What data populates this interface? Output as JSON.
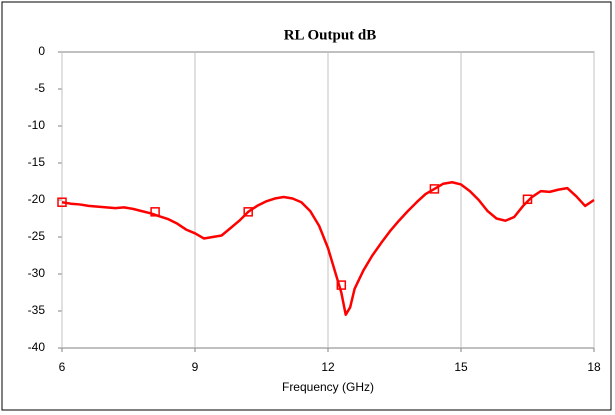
{
  "chart_data": {
    "type": "line",
    "title": "RL Output dB",
    "x_label": "Frequency (GHz)",
    "xlim": [
      6,
      18
    ],
    "xticks": [
      6,
      9,
      12,
      15,
      18
    ],
    "ylim": [
      -40,
      0
    ],
    "yticks": [
      0,
      -5,
      -10,
      -15,
      -20,
      -25,
      -30,
      -35,
      -40
    ],
    "xgrid": true,
    "ygrid": false,
    "series": [
      {
        "color": "#ff0000",
        "marker": false,
        "x": [
          6.0,
          6.2,
          6.4,
          6.6,
          6.8,
          7.0,
          7.2,
          7.4,
          7.6,
          7.8,
          8.0,
          8.2,
          8.4,
          8.6,
          8.8,
          9.0,
          9.2,
          9.4,
          9.6,
          9.8,
          10.0,
          10.2,
          10.4,
          10.6,
          10.8,
          11.0,
          11.2,
          11.4,
          11.6,
          11.8,
          12.0,
          12.2,
          12.3,
          12.4,
          12.5,
          12.6,
          12.8,
          13.0,
          13.2,
          13.4,
          13.6,
          13.8,
          14.0,
          14.2,
          14.4,
          14.6,
          14.8,
          15.0,
          15.2,
          15.4,
          15.6,
          15.8,
          16.0,
          16.2,
          16.4,
          16.6,
          16.8,
          17.0,
          17.2,
          17.4,
          17.6,
          17.8,
          18.0
        ],
        "values": [
          -20.3,
          -20.5,
          -20.6,
          -20.8,
          -20.9,
          -21.0,
          -21.1,
          -21.0,
          -21.2,
          -21.5,
          -21.8,
          -22.2,
          -22.6,
          -23.2,
          -24.0,
          -24.5,
          -25.2,
          -25.0,
          -24.8,
          -23.8,
          -22.8,
          -21.6,
          -20.8,
          -20.2,
          -19.8,
          -19.6,
          -19.8,
          -20.3,
          -21.5,
          -23.5,
          -26.5,
          -30.5,
          -32.5,
          -35.5,
          -34.5,
          -32.0,
          -29.5,
          -27.5,
          -25.8,
          -24.2,
          -22.8,
          -21.5,
          -20.3,
          -19.2,
          -18.5,
          -17.8,
          -17.6,
          -17.9,
          -18.8,
          -20.0,
          -21.5,
          -22.5,
          -22.8,
          -22.3,
          -20.8,
          -19.6,
          -18.8,
          -18.9,
          -18.6,
          -18.4,
          -19.5,
          -20.8,
          -20.0
        ]
      },
      {
        "color": "#ff0000",
        "marker": true,
        "x": [
          6.0,
          8.1,
          10.2,
          12.3,
          14.4,
          16.5
        ],
        "values": [
          -20.3,
          -21.6,
          -21.6,
          -31.5,
          -18.5,
          -19.9
        ]
      }
    ]
  }
}
